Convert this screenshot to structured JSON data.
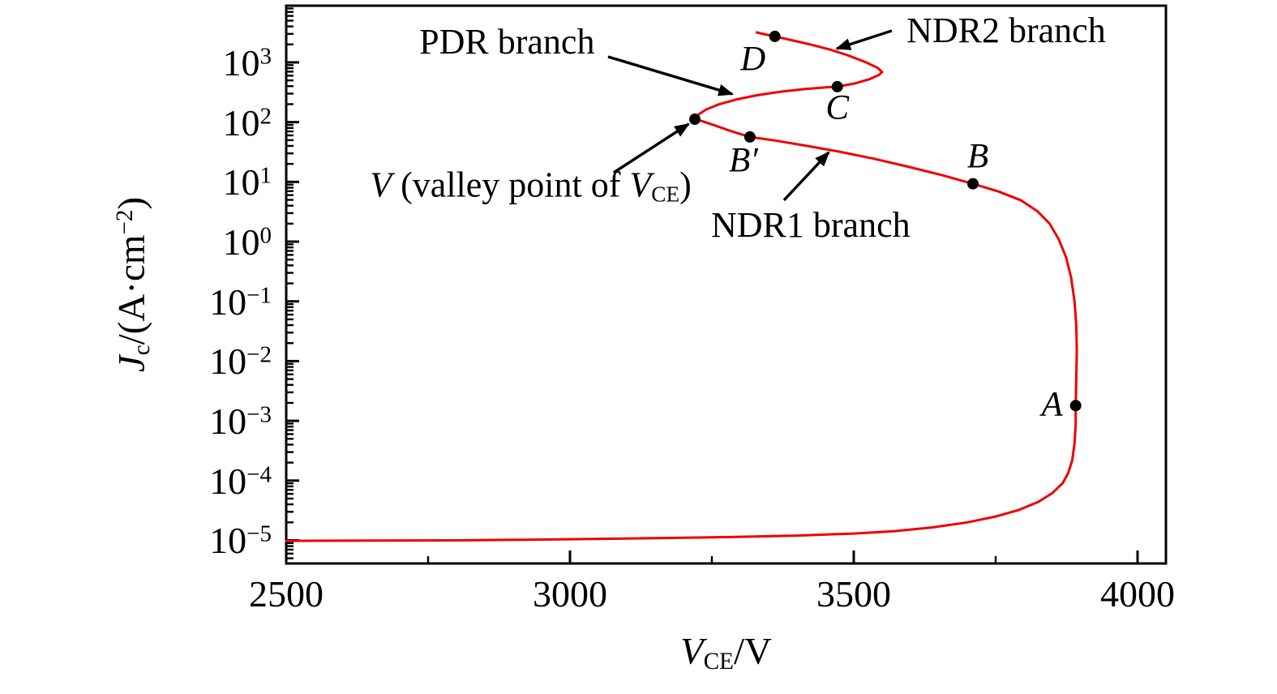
{
  "figure": {
    "background": "#ffffff",
    "frame_color": "#000000"
  },
  "chart_data": {
    "type": "line",
    "title": "",
    "xlabel": "V_CE/V",
    "ylabel": "J_c/(A·cm^-2)",
    "xlabel_parts": [
      {
        "t": "V",
        "style": "i"
      },
      {
        "t": "CE",
        "style": "sub"
      },
      {
        "t": "/V",
        "style": ""
      }
    ],
    "ylabel_parts": [
      {
        "t": "J",
        "style": "i"
      },
      {
        "t": "c",
        "style": "sub"
      },
      {
        "t": "/(A·cm",
        "style": ""
      },
      {
        "t": "−2",
        "style": "sup"
      },
      {
        "t": ")",
        "style": ""
      }
    ],
    "xlim": [
      2500,
      4050
    ],
    "ylim": [
      4.1e-06,
      8900
    ],
    "y_scale": "log",
    "grid": false,
    "legend": "none",
    "x_ticks": [
      {
        "v": 2500,
        "label": "2500"
      },
      {
        "v": 3000,
        "label": "3000"
      },
      {
        "v": 3500,
        "label": "3500"
      },
      {
        "v": 4000,
        "label": "4000"
      }
    ],
    "x_minor_ticks": [
      2750,
      3250,
      3750
    ],
    "y_ticks": [
      {
        "v": 1000,
        "base": "10",
        "exp": "3"
      },
      {
        "v": 100,
        "base": "10",
        "exp": "2"
      },
      {
        "v": 10,
        "base": "10",
        "exp": "1"
      },
      {
        "v": 1,
        "base": "10",
        "exp": "0"
      },
      {
        "v": 0.1,
        "base": "10",
        "exp": "−1"
      },
      {
        "v": 0.01,
        "base": "10",
        "exp": "−2"
      },
      {
        "v": 0.001,
        "base": "10",
        "exp": "−3"
      },
      {
        "v": 0.0001,
        "base": "10",
        "exp": "−4"
      },
      {
        "v": 1e-05,
        "base": "10",
        "exp": "−5"
      }
    ],
    "series": [
      {
        "color": "#ee0000",
        "points": [
          [
            2500,
            9.8e-06
          ],
          [
            2650,
            9.9e-06
          ],
          [
            2800,
            1e-05
          ],
          [
            2950,
            1.03e-05
          ],
          [
            3100,
            1.07e-05
          ],
          [
            3250,
            1.12e-05
          ],
          [
            3400,
            1.2e-05
          ],
          [
            3500,
            1.3e-05
          ],
          [
            3570,
            1.42e-05
          ],
          [
            3640,
            1.65e-05
          ],
          [
            3700,
            2e-05
          ],
          [
            3750,
            2.5e-05
          ],
          [
            3790,
            3.2e-05
          ],
          [
            3825,
            4.4e-05
          ],
          [
            3850,
            6.2e-05
          ],
          [
            3868,
            9e-05
          ],
          [
            3878,
            0.000135
          ],
          [
            3885,
            0.00022
          ],
          [
            3889,
            0.00042
          ],
          [
            3891,
            0.0009
          ],
          [
            3891,
            0.0018
          ],
          [
            3892,
            0.005
          ],
          [
            3893,
            0.015
          ],
          [
            3892,
            0.04
          ],
          [
            3889,
            0.1
          ],
          [
            3883,
            0.25
          ],
          [
            3874,
            0.55
          ],
          [
            3861,
            1.1
          ],
          [
            3845,
            2.0
          ],
          [
            3824,
            3.2
          ],
          [
            3795,
            4.9
          ],
          [
            3755,
            6.9
          ],
          [
            3710,
            9.3
          ],
          [
            3655,
            13
          ],
          [
            3595,
            18
          ],
          [
            3535,
            24.5
          ],
          [
            3475,
            32
          ],
          [
            3415,
            40.5
          ],
          [
            3360,
            49.5
          ],
          [
            3317,
            56.5
          ],
          [
            3283,
            71
          ],
          [
            3255,
            88
          ],
          [
            3234,
            103
          ],
          [
            3220,
            112
          ],
          [
            3226,
            133
          ],
          [
            3240,
            163
          ],
          [
            3262,
            198
          ],
          [
            3292,
            238
          ],
          [
            3330,
            283
          ],
          [
            3372,
            324
          ],
          [
            3415,
            360
          ],
          [
            3450,
            381
          ],
          [
            3471,
            392
          ],
          [
            3502,
            445
          ],
          [
            3528,
            525
          ],
          [
            3544,
            615
          ],
          [
            3550,
            688
          ],
          [
            3542,
            810
          ],
          [
            3522,
            1000
          ],
          [
            3492,
            1290
          ],
          [
            3458,
            1640
          ],
          [
            3422,
            2010
          ],
          [
            3390,
            2360
          ],
          [
            3361,
            2720
          ],
          [
            3341,
            2980
          ],
          [
            3329,
            3180
          ]
        ]
      }
    ],
    "points": [
      {
        "id": "A",
        "label": "A",
        "v": 3891,
        "j": 0.0018,
        "label_offset": [
          -29,
          -1
        ]
      },
      {
        "id": "B",
        "label": "B",
        "v": 3710,
        "j": 9.3,
        "label_offset": [
          6,
          -34
        ]
      },
      {
        "id": "B-prime",
        "label": "B′",
        "v": 3317,
        "j": 56.5,
        "label_offset": [
          -8,
          29
        ]
      },
      {
        "id": "C",
        "label": "C",
        "v": 3471,
        "j": 392,
        "label_offset": [
          0,
          26
        ]
      },
      {
        "id": "D",
        "label": "D",
        "v": 3361,
        "j": 2720,
        "label_offset": [
          -27,
          28
        ]
      },
      {
        "id": "V",
        "label": "",
        "v": 3220,
        "j": 112,
        "label_offset": [
          0,
          0
        ]
      }
    ],
    "annotations": [
      {
        "id": "pdr-branch",
        "anchor": "middle",
        "at": [
          2889,
          2185
        ],
        "parts": [
          {
            "t": "PDR branch",
            "style": ""
          }
        ],
        "arrow": {
          "from": [
            3067,
            1245
          ],
          "to": [
            3286,
            295
          ]
        }
      },
      {
        "id": "ndr2-branch",
        "anchor": "start",
        "at": [
          3593,
          3385
        ],
        "parts": [
          {
            "t": "NDR2 branch",
            "style": ""
          }
        ],
        "arrow": {
          "from": [
            3567,
            3385
          ],
          "to": [
            3470,
            1700
          ]
        }
      },
      {
        "id": "valley-point",
        "anchor": "end",
        "at": [
          3214,
          8.4
        ],
        "parts": [
          {
            "t": "V",
            "style": "i"
          },
          {
            "t": " (valley point of ",
            "style": ""
          },
          {
            "t": "V",
            "style": "i"
          },
          {
            "t": "CE",
            "style": "sub"
          },
          {
            "t": ")",
            "style": ""
          }
        ],
        "arrow": {
          "from": [
            3077,
            14.3
          ],
          "to": [
            3209,
            93
          ]
        }
      },
      {
        "id": "ndr1-branch",
        "anchor": "middle",
        "at": [
          3424,
          1.87
        ],
        "parts": [
          {
            "t": "NDR1 branch",
            "style": ""
          }
        ],
        "arrow": {
          "from": [
            3377,
            4.93
          ],
          "to": [
            3456,
            31.2
          ]
        }
      }
    ]
  }
}
